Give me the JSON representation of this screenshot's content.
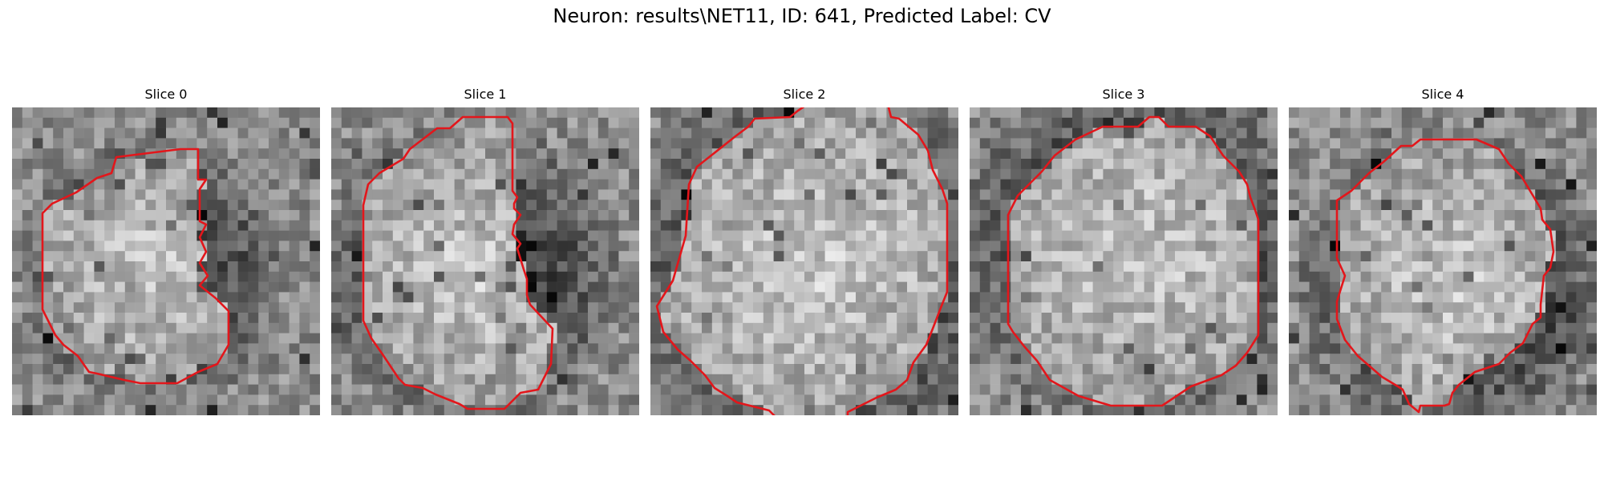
{
  "figure": {
    "title": "Neuron: results\\NET11, ID: 641, Predicted Label: CV"
  },
  "panels": [
    {
      "title": "Slice 0"
    },
    {
      "title": "Slice 1"
    },
    {
      "title": "Slice 2"
    },
    {
      "title": "Slice 3"
    },
    {
      "title": "Slice 4"
    }
  ],
  "colors": {
    "contour": "#e3161b"
  }
}
